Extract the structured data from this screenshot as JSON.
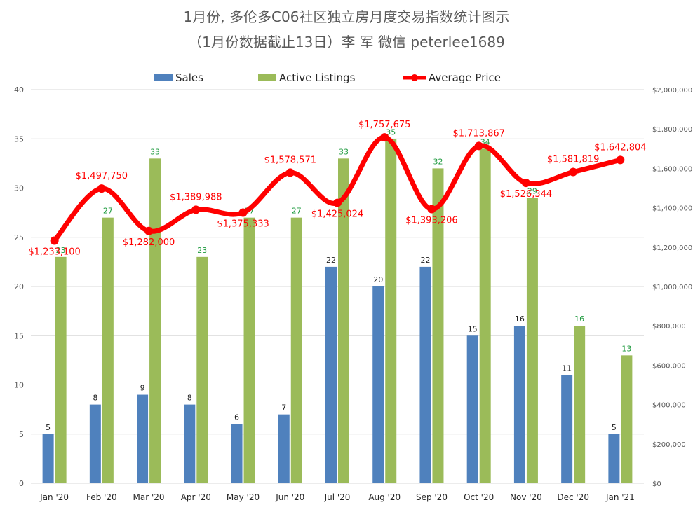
{
  "title_line1": "1月份, 多伦多C06社区独立房月度交易指数统计图示",
  "title_line2": "（1月份数据截止13日）李 军  微信  peterlee1689",
  "colors": {
    "sales": "#4f81bd",
    "active": "#9bbb59",
    "price": "#ff0000",
    "sales_label": "#1f1f1f",
    "active_label": "#1e9a3e",
    "grid": "#d9d9d9",
    "axis_text": "#595959"
  },
  "chart_data": {
    "type": "bar",
    "categories": [
      "Jan '20",
      "Feb '20",
      "Mar '20",
      "Apr '20",
      "May '20",
      "Jun '20",
      "Jul '20",
      "Aug '20",
      "Sep '20",
      "Oct '20",
      "Nov '20",
      "Dec '20",
      "Jan '21"
    ],
    "series": [
      {
        "name": "Sales",
        "type": "bar",
        "axis": "left",
        "values": [
          5,
          8,
          9,
          8,
          6,
          7,
          22,
          20,
          22,
          15,
          16,
          11,
          5
        ]
      },
      {
        "name": "Active Listings",
        "type": "bar",
        "axis": "left",
        "values": [
          23,
          27,
          33,
          23,
          27,
          27,
          33,
          35,
          32,
          34,
          29,
          16,
          13
        ]
      },
      {
        "name": "Average Price",
        "type": "line",
        "axis": "right",
        "values": [
          1233100,
          1497750,
          1282000,
          1389988,
          1375333,
          1578571,
          1425024,
          1757675,
          1393206,
          1713867,
          1526344,
          1581819,
          1642804
        ]
      }
    ],
    "price_labels": [
      "$1,233,100",
      "$1,497,750",
      "$1,282,000",
      "$1,389,988",
      "$1,375,333",
      "$1,578,571",
      "$1,425,024",
      "$1,757,675",
      "$1,393,206",
      "$1,713,867",
      "$1,526,344",
      "$1,581,819",
      "$1,642,804"
    ],
    "ylim_left": [
      0,
      40
    ],
    "yticks_left": [
      "0",
      "5",
      "10",
      "15",
      "20",
      "25",
      "30",
      "35",
      "40"
    ],
    "ylim_right": [
      0,
      2000000
    ],
    "yticks_right": [
      "$0",
      "$200,000",
      "$400,000",
      "$600,000",
      "$800,000",
      "$1,000,000",
      "$1,200,000",
      "$1,400,000",
      "$1,600,000",
      "$1,800,000",
      "$2,000,000"
    ],
    "legend_position": "top",
    "grid": true
  }
}
